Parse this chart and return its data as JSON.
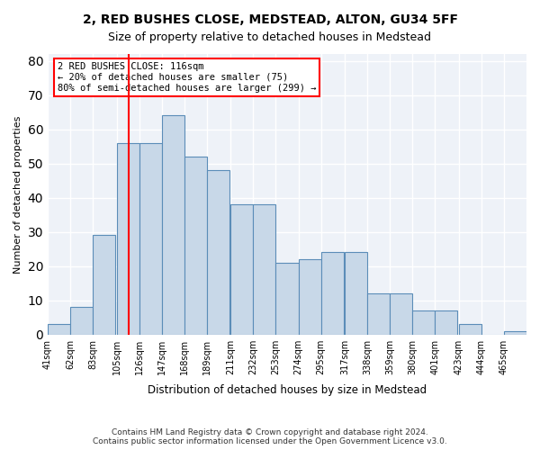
{
  "title": "2, RED BUSHES CLOSE, MEDSTEAD, ALTON, GU34 5FF",
  "subtitle": "Size of property relative to detached houses in Medstead",
  "xlabel": "Distribution of detached houses by size in Medstead",
  "ylabel": "Number of detached properties",
  "bar_color": "#c8d8e8",
  "bar_edge_color": "#5b8db8",
  "background_color": "#eef2f8",
  "grid_color": "#ffffff",
  "bin_labels": [
    "41sqm",
    "62sqm",
    "83sqm",
    "105sqm",
    "126sqm",
    "147sqm",
    "168sqm",
    "189sqm",
    "211sqm",
    "232sqm",
    "253sqm",
    "274sqm",
    "295sqm",
    "317sqm",
    "338sqm",
    "359sqm",
    "380sqm",
    "401sqm",
    "423sqm",
    "444sqm",
    "465sqm"
  ],
  "bin_edges": [
    41,
    62,
    83,
    105,
    126,
    147,
    168,
    189,
    211,
    232,
    253,
    274,
    295,
    317,
    338,
    359,
    380,
    401,
    423,
    444,
    465
  ],
  "counts": [
    3,
    8,
    29,
    56,
    56,
    64,
    52,
    48,
    38,
    38,
    21,
    22,
    24,
    24,
    12,
    12,
    7,
    7,
    3,
    0,
    1
  ],
  "ylim": [
    0,
    82
  ],
  "yticks": [
    0,
    10,
    20,
    30,
    40,
    50,
    60,
    70,
    80
  ],
  "red_line_x": 116,
  "annotation_title": "2 RED BUSHES CLOSE: 116sqm",
  "annotation_line1": "← 20% of detached houses are smaller (75)",
  "annotation_line2": "80% of semi-detached houses are larger (299) →",
  "footer_line1": "Contains HM Land Registry data © Crown copyright and database right 2024.",
  "footer_line2": "Contains public sector information licensed under the Open Government Licence v3.0."
}
